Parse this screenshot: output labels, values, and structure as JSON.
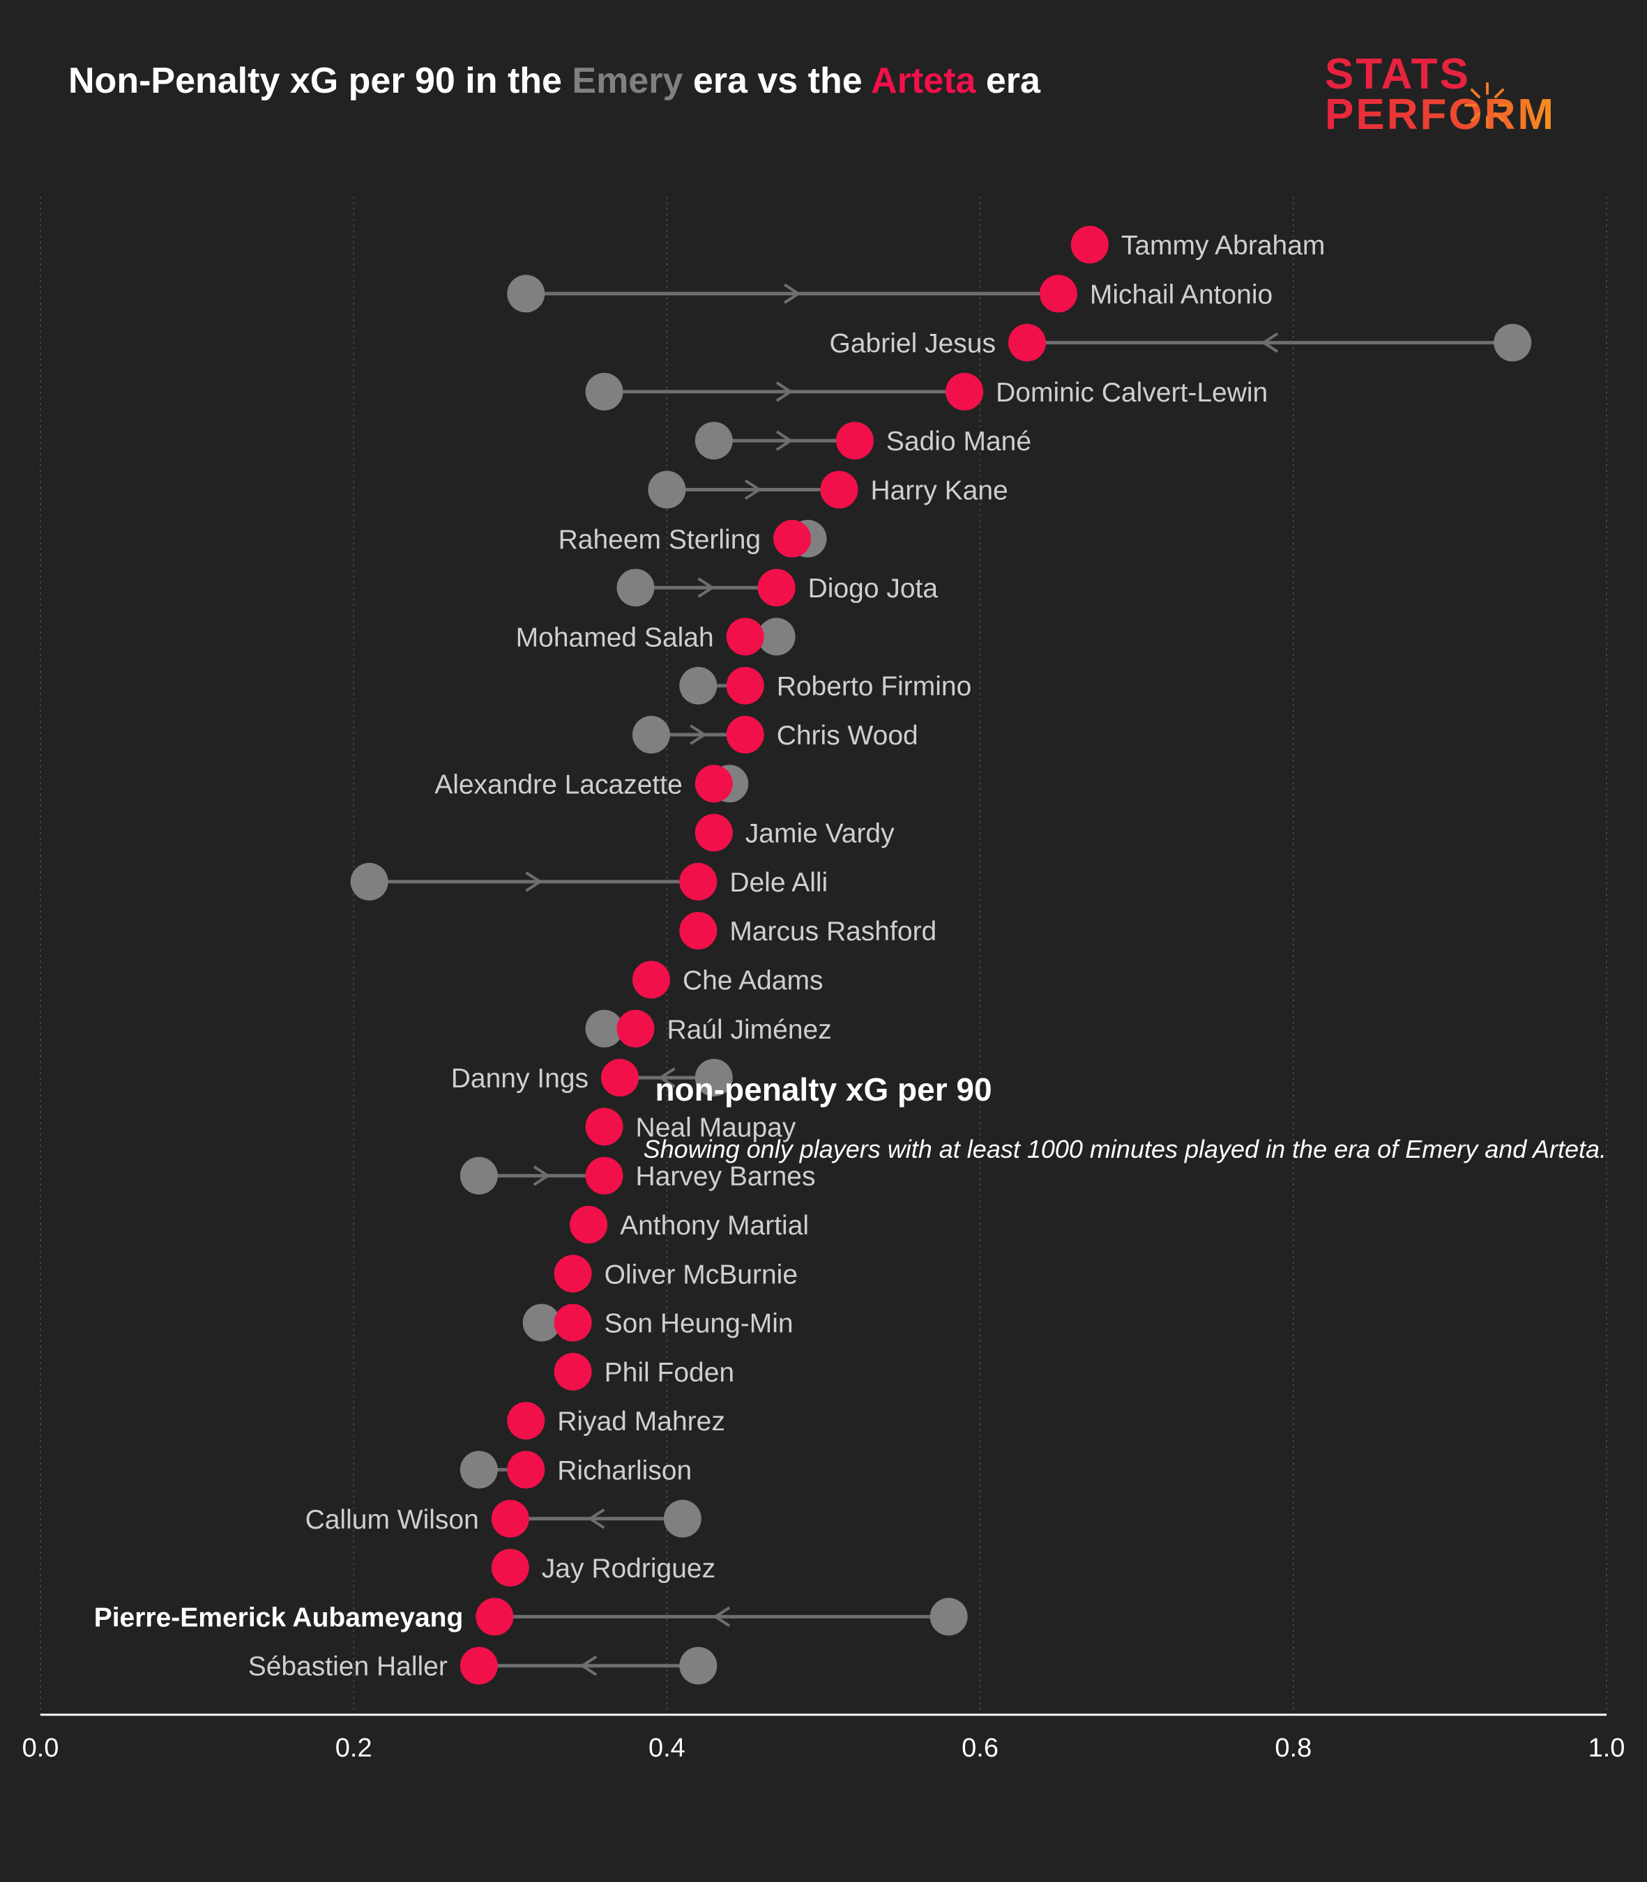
{
  "header": {
    "title_pre": "Non-Penalty xG per 90 in the ",
    "title_emery": "Emery",
    "title_mid": " era vs the ",
    "title_arteta": "Arteta",
    "title_post": " era"
  },
  "logo": {
    "line1": "STATS",
    "line2": "PERFORM"
  },
  "footnote": "Showing only players with at least 1000 minutes played in the era of Emery and Arteta.",
  "colors": {
    "background": "#222222",
    "emery": "#808080",
    "arteta": "#f2104a",
    "connector": "#6e6e6e",
    "label": "#cfcfcf",
    "highlight_label": "#ffffff",
    "grid": "#444444",
    "axis": "#ffffff"
  },
  "chart_data": {
    "type": "dumbbell",
    "xlabel": "non-penalty xG per 90",
    "xlim": [
      0.0,
      1.0
    ],
    "xticks": [
      "0.0",
      "0.2",
      "0.4",
      "0.6",
      "0.8",
      "1.0"
    ],
    "grid": "vertical dotted",
    "series": [
      {
        "name": "Emery"
      },
      {
        "name": "Arteta"
      }
    ],
    "players": [
      {
        "name": "Tammy Abraham",
        "emery": null,
        "arteta": 0.67
      },
      {
        "name": "Michail Antonio",
        "emery": 0.31,
        "arteta": 0.65
      },
      {
        "name": "Gabriel Jesus",
        "emery": 0.94,
        "arteta": 0.63
      },
      {
        "name": "Dominic Calvert-Lewin",
        "emery": 0.36,
        "arteta": 0.59
      },
      {
        "name": "Sadio Mané",
        "emery": 0.43,
        "arteta": 0.52
      },
      {
        "name": "Harry Kane",
        "emery": 0.4,
        "arteta": 0.51
      },
      {
        "name": "Raheem Sterling",
        "emery": 0.49,
        "arteta": 0.48
      },
      {
        "name": "Diogo Jota",
        "emery": 0.38,
        "arteta": 0.47
      },
      {
        "name": "Mohamed Salah",
        "emery": 0.47,
        "arteta": 0.45
      },
      {
        "name": "Roberto Firmino",
        "emery": 0.42,
        "arteta": 0.45
      },
      {
        "name": "Chris Wood",
        "emery": 0.39,
        "arteta": 0.45
      },
      {
        "name": "Alexandre Lacazette",
        "emery": 0.44,
        "arteta": 0.43
      },
      {
        "name": "Jamie Vardy",
        "emery": null,
        "arteta": 0.43
      },
      {
        "name": "Dele Alli",
        "emery": 0.21,
        "arteta": 0.42
      },
      {
        "name": "Marcus Rashford",
        "emery": null,
        "arteta": 0.42
      },
      {
        "name": "Che Adams",
        "emery": null,
        "arteta": 0.39
      },
      {
        "name": "Raúl Jiménez",
        "emery": 0.36,
        "arteta": 0.38
      },
      {
        "name": "Danny Ings",
        "emery": 0.43,
        "arteta": 0.37
      },
      {
        "name": "Neal Maupay",
        "emery": null,
        "arteta": 0.36
      },
      {
        "name": "Harvey Barnes",
        "emery": 0.28,
        "arteta": 0.36
      },
      {
        "name": "Anthony Martial",
        "emery": null,
        "arteta": 0.35
      },
      {
        "name": "Oliver McBurnie",
        "emery": null,
        "arteta": 0.34
      },
      {
        "name": "Son Heung-Min",
        "emery": 0.32,
        "arteta": 0.34
      },
      {
        "name": "Phil Foden",
        "emery": null,
        "arteta": 0.34
      },
      {
        "name": "Riyad Mahrez",
        "emery": null,
        "arteta": 0.31
      },
      {
        "name": "Richarlison",
        "emery": 0.28,
        "arteta": 0.31
      },
      {
        "name": "Callum Wilson",
        "emery": 0.41,
        "arteta": 0.3
      },
      {
        "name": "Jay Rodriguez",
        "emery": null,
        "arteta": 0.3
      },
      {
        "name": "Pierre-Emerick Aubameyang",
        "emery": 0.58,
        "arteta": 0.29,
        "highlight": true
      },
      {
        "name": "Sébastien Haller",
        "emery": 0.42,
        "arteta": 0.28
      }
    ]
  }
}
